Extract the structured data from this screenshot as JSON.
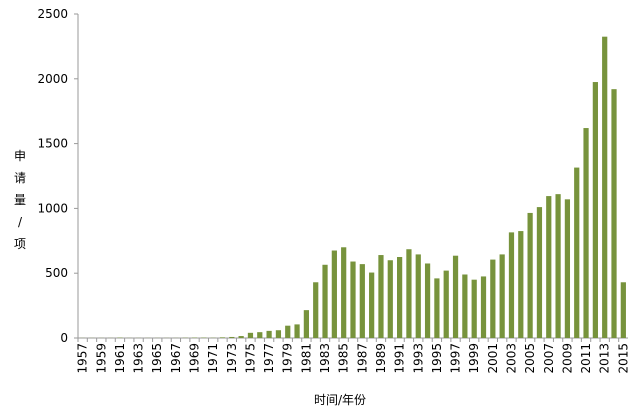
{
  "chart_data": {
    "type": "bar",
    "x_label": "时间/年份",
    "y_label": "申请量/项",
    "color": "#77933c",
    "categories": [
      "1957",
      null,
      "1959",
      null,
      "1961",
      null,
      "1963",
      null,
      "1965",
      null,
      "1967",
      null,
      "1969",
      null,
      "1971",
      null,
      "1973",
      null,
      "1975",
      null,
      "1977",
      null,
      "1979",
      null,
      "1981",
      null,
      "1983",
      null,
      "1985",
      null,
      "1987",
      null,
      "1989",
      null,
      "1991",
      null,
      "1993",
      null,
      "1995",
      null,
      "1997",
      null,
      "1999",
      null,
      "2001",
      null,
      "2003",
      null,
      "2005",
      null,
      "2007",
      null,
      "2009",
      null,
      "2011",
      null,
      "2013",
      null,
      "2015"
    ],
    "values": [
      1,
      1,
      1,
      1,
      3,
      1,
      1,
      1,
      1,
      1,
      1,
      2,
      3,
      3,
      2,
      5,
      8,
      15,
      40,
      45,
      55,
      60,
      95,
      105,
      215,
      430,
      565,
      675,
      700,
      590,
      570,
      505,
      640,
      600,
      625,
      685,
      645,
      575,
      460,
      520,
      635,
      490,
      450,
      475,
      605,
      645,
      815,
      825,
      965,
      1010,
      1095,
      1110,
      1070,
      1315,
      1620,
      1975,
      2325,
      1920,
      430
    ],
    "ylim": [
      0,
      2500
    ],
    "yticks": [
      0,
      500,
      1000,
      1500,
      2000,
      2500
    ]
  }
}
